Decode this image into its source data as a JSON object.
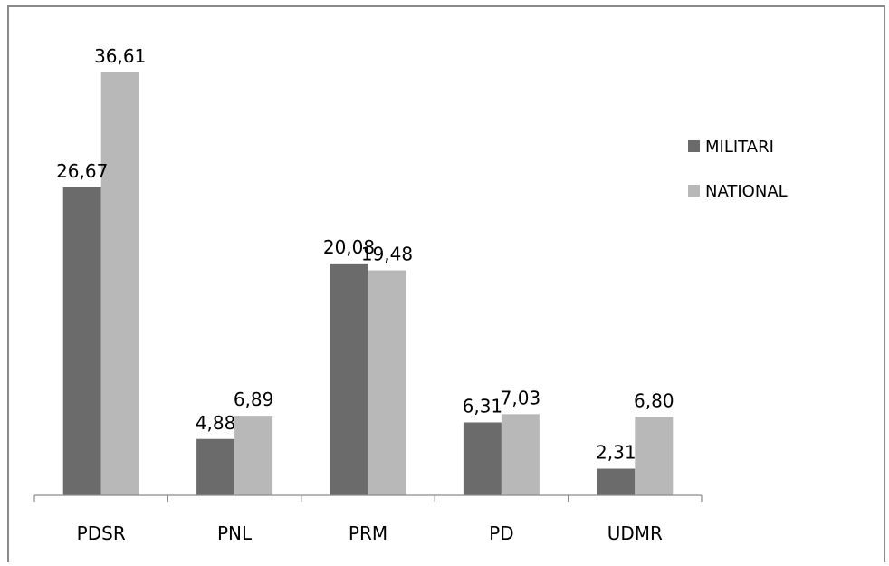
{
  "chart_data": {
    "type": "bar",
    "categories": [
      "PDSR",
      "PNL",
      "PRM",
      "PD",
      "UDMR"
    ],
    "series": [
      {
        "name": "MILITARI",
        "values": [
          26.67,
          4.88,
          20.08,
          6.31,
          2.31
        ],
        "labels": [
          "26,67",
          "4,88",
          "20,08",
          "6,31",
          "2,31"
        ],
        "color": "#6b6b6b"
      },
      {
        "name": "NATIONAL",
        "values": [
          36.61,
          6.89,
          19.48,
          7.03,
          6.8
        ],
        "labels": [
          "36,61",
          "6,89",
          "19,48",
          "7,03",
          "6,80"
        ],
        "color": "#b8b8b8"
      }
    ],
    "ylim": [
      0,
      40
    ],
    "grid": false,
    "legend": "right",
    "title": "",
    "xlabel": "",
    "ylabel": ""
  }
}
